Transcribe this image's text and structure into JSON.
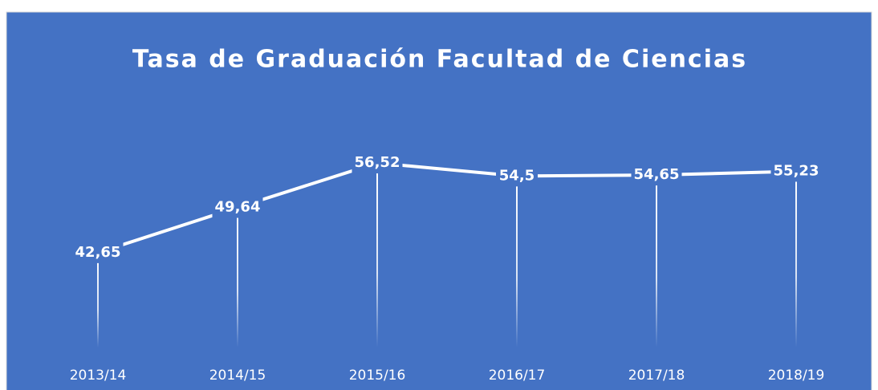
{
  "chart_data": {
    "type": "line",
    "title": "Tasa de Graduación Facultad de Ciencias",
    "categories": [
      "2013/14",
      "2014/15",
      "2015/16",
      "2016/17",
      "2017/18",
      "2018/19"
    ],
    "values": [
      42.65,
      49.64,
      56.52,
      54.5,
      54.65,
      55.23
    ],
    "value_labels": [
      "42,65",
      "49,64",
      "56,52",
      "54,5",
      "54,65",
      "55,23"
    ],
    "color": "#ffffff",
    "background": "#4472c4",
    "ylim": [
      28,
      60
    ]
  }
}
